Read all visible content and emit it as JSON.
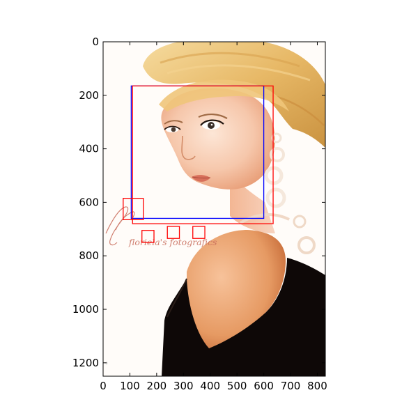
{
  "figure": {
    "image_description": "Photo of a blonde woman in a black top, looking over her shoulder, with a signature watermark",
    "watermark_text": "floriela's fotografics",
    "image_extent": {
      "x": [
        0,
        830
      ],
      "y": [
        1250,
        0
      ]
    }
  },
  "axes": {
    "x_ticks": [
      {
        "value": 0,
        "label": "0"
      },
      {
        "value": 100,
        "label": "100"
      },
      {
        "value": 200,
        "label": "200"
      },
      {
        "value": 300,
        "label": "300"
      },
      {
        "value": 400,
        "label": "400"
      },
      {
        "value": 500,
        "label": "500"
      },
      {
        "value": 600,
        "label": "600"
      },
      {
        "value": 700,
        "label": "700"
      },
      {
        "value": 800,
        "label": "800"
      }
    ],
    "y_ticks": [
      {
        "value": 0,
        "label": "0"
      },
      {
        "value": 200,
        "label": "200"
      },
      {
        "value": 400,
        "label": "400"
      },
      {
        "value": 600,
        "label": "600"
      },
      {
        "value": 800,
        "label": "800"
      },
      {
        "value": 1000,
        "label": "1000"
      },
      {
        "value": 1200,
        "label": "1200"
      }
    ]
  },
  "boxes": [
    {
      "name": "blue-face-box",
      "color": "#0000ff",
      "x0": 105,
      "y0": 165,
      "x1": 600,
      "y1": 660
    },
    {
      "name": "red-face-box",
      "color": "#ff0000",
      "x0": 110,
      "y0": 165,
      "x1": 635,
      "y1": 680
    },
    {
      "name": "red-small-box-1",
      "color": "#ff0000",
      "x0": 75,
      "y0": 585,
      "x1": 150,
      "y1": 665
    },
    {
      "name": "red-small-box-2",
      "color": "#ff0000",
      "x0": 145,
      "y0": 705,
      "x1": 190,
      "y1": 750
    },
    {
      "name": "red-small-box-3",
      "color": "#ff0000",
      "x0": 240,
      "y0": 690,
      "x1": 285,
      "y1": 735
    },
    {
      "name": "red-small-box-4",
      "color": "#ff0000",
      "x0": 335,
      "y0": 690,
      "x1": 380,
      "y1": 735
    }
  ]
}
